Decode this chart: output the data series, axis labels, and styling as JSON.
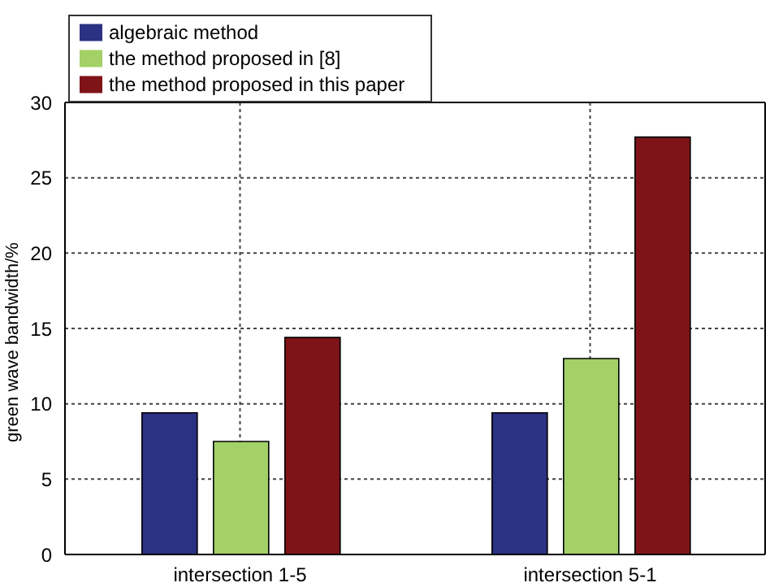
{
  "chart_data": {
    "type": "bar",
    "ylabel": "green wave bandwidth/%",
    "categories": [
      "intersection 1-5",
      "intersection 5-1"
    ],
    "series": [
      {
        "name": "algebraic method",
        "color": "#2b3183",
        "values": [
          9.4,
          9.4
        ]
      },
      {
        "name": "the method proposed in [8]",
        "color": "#a3d067",
        "values": [
          7.5,
          13
        ]
      },
      {
        "name": "the method proposed in this paper",
        "color": "#7f1418",
        "values": [
          14.4,
          27.7
        ]
      }
    ],
    "ylim": [
      0,
      30
    ],
    "yticks": [
      0,
      5,
      10,
      15,
      20,
      25,
      30
    ],
    "grid": true,
    "legend": "top left"
  }
}
